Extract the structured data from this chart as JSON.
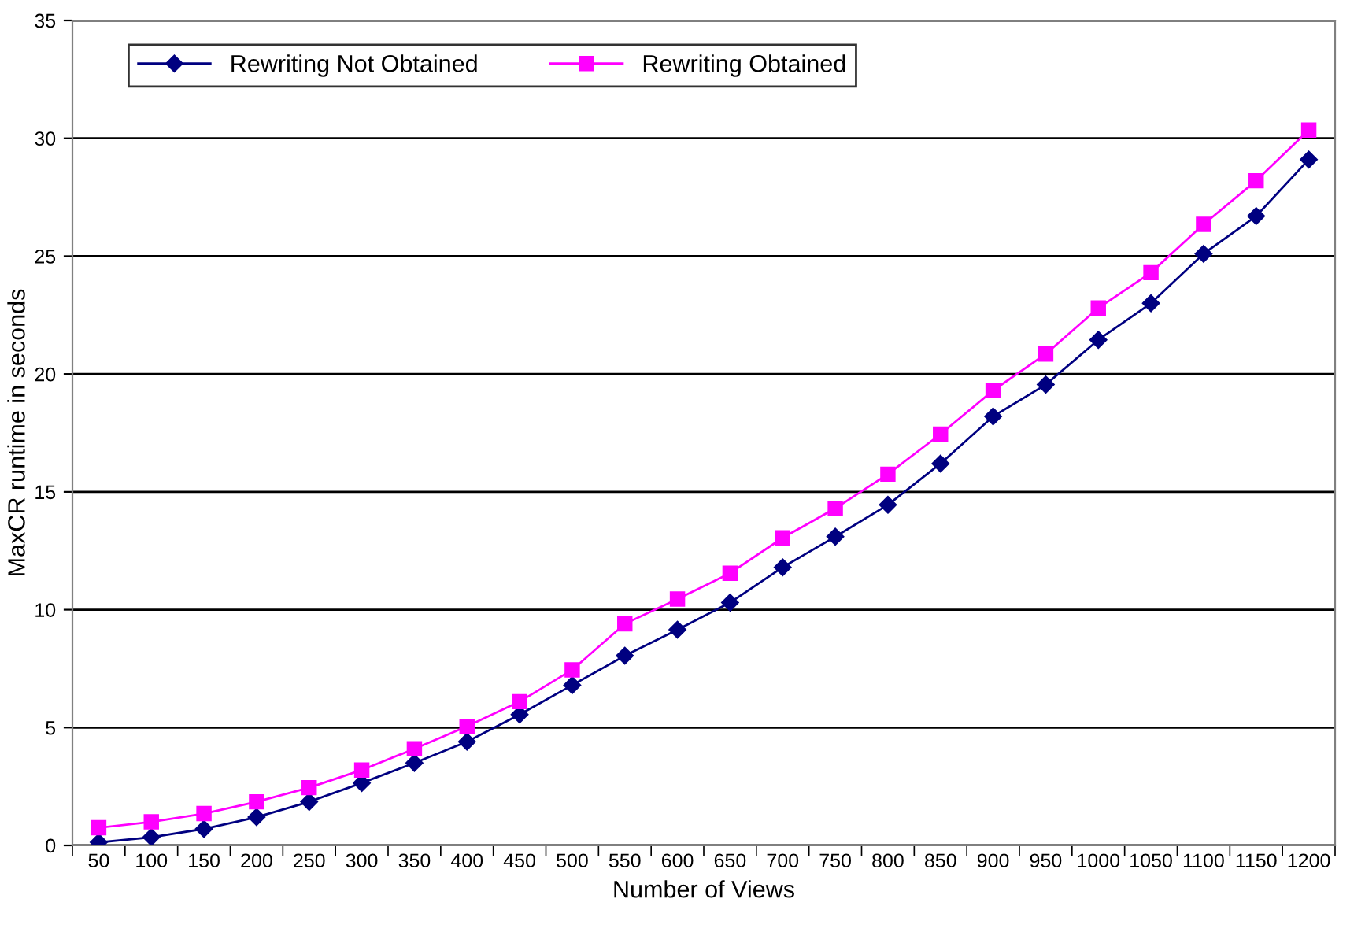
{
  "chart_data": {
    "type": "line",
    "xlabel": "Number of Views",
    "ylabel": "MaxCR runtime in seconds",
    "categories": [
      "50",
      "100",
      "150",
      "200",
      "250",
      "300",
      "350",
      "400",
      "450",
      "500",
      "550",
      "600",
      "650",
      "700",
      "750",
      "800",
      "850",
      "900",
      "950",
      "1000",
      "1050",
      "1100",
      "1150",
      "1200"
    ],
    "series": [
      {
        "name": "Rewriting Not Obtained",
        "color": "#000080",
        "marker": "diamond",
        "values": [
          0.13,
          0.35,
          0.7,
          1.2,
          1.85,
          2.65,
          3.5,
          4.4,
          5.55,
          6.8,
          8.05,
          9.15,
          10.3,
          11.8,
          13.1,
          14.45,
          16.2,
          18.2,
          19.55,
          21.45,
          23.0,
          25.1,
          26.7,
          29.1
        ]
      },
      {
        "name": "Rewriting Obtained",
        "color": "#ff00ff",
        "marker": "square",
        "values": [
          0.75,
          1.0,
          1.35,
          1.85,
          2.45,
          3.2,
          4.1,
          5.05,
          6.1,
          7.45,
          9.4,
          10.45,
          11.55,
          13.05,
          14.3,
          15.75,
          17.45,
          19.3,
          20.85,
          22.8,
          24.3,
          26.35,
          28.2,
          30.35
        ]
      }
    ],
    "ylim": [
      0,
      35
    ],
    "yticks": [
      0,
      5,
      10,
      15,
      20,
      25,
      30,
      35
    ],
    "grid": "y",
    "legend": "top left",
    "line_style": "solid"
  }
}
